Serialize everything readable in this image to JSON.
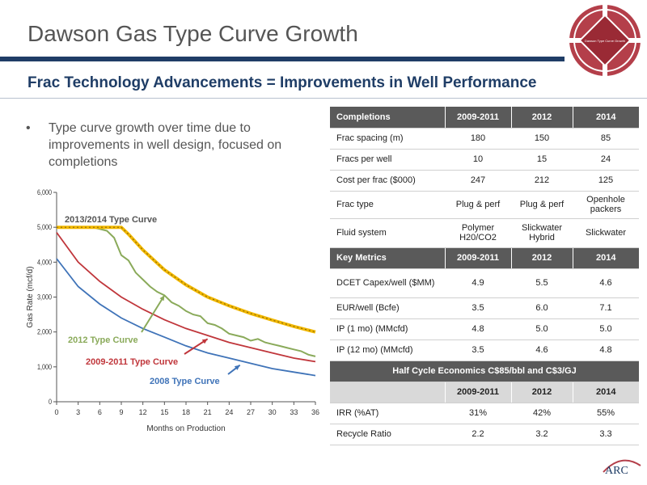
{
  "header": {
    "title": "Dawson Gas Type Curve Growth",
    "subtitle": "Frac Technology Advancements = Improvements in Well Performance"
  },
  "bullet": {
    "marker": "•",
    "text": "Type curve growth over time due to improvements in well design, focused on completions"
  },
  "logo": {
    "label": "Dawson Type Curve Growth",
    "colors": {
      "ring": "#b43f4a",
      "core": "#9a2a35"
    }
  },
  "arc_logo": {
    "text": "ARC"
  },
  "chart_data": {
    "type": "line",
    "title": "",
    "xlabel": "Months on Production",
    "ylabel": "Gas Rate (mcf/d)",
    "xlim": [
      0,
      36
    ],
    "ylim": [
      0,
      6000
    ],
    "x_ticks": [
      0,
      3,
      6,
      9,
      12,
      15,
      18,
      21,
      24,
      27,
      30,
      33,
      36
    ],
    "y_ticks": [
      0,
      1000,
      2000,
      3000,
      4000,
      5000,
      6000
    ],
    "y_tick_labels": [
      "0",
      "1,000",
      "2,000",
      "3,000",
      "4,000",
      "5,000",
      "6,000"
    ],
    "grid": false,
    "series": [
      {
        "name": "2013/2014 Type Curve",
        "color": "#f2b800",
        "style": "dashed-thick",
        "x": [
          0,
          3,
          6,
          9,
          10,
          12,
          15,
          18,
          21,
          24,
          27,
          30,
          33,
          36
        ],
        "y": [
          5000,
          5000,
          5000,
          5000,
          4800,
          4350,
          3780,
          3350,
          3000,
          2750,
          2530,
          2340,
          2160,
          2000
        ]
      },
      {
        "name": "2012 Type Curve",
        "color": "#8aaa5a",
        "style": "noisy",
        "x": [
          0,
          3,
          5,
          6,
          7,
          8,
          9,
          10,
          11,
          12,
          13,
          14,
          15,
          16,
          17,
          18,
          19,
          20,
          21,
          22,
          23,
          24,
          25,
          26,
          27,
          28,
          29,
          30,
          31,
          32,
          33,
          34,
          35,
          36
        ],
        "y": [
          5000,
          5000,
          5000,
          4950,
          4900,
          4700,
          4200,
          4050,
          3700,
          3500,
          3300,
          3150,
          3050,
          2850,
          2750,
          2600,
          2500,
          2450,
          2250,
          2200,
          2100,
          1950,
          1900,
          1850,
          1750,
          1800,
          1700,
          1650,
          1600,
          1550,
          1500,
          1450,
          1350,
          1300
        ]
      },
      {
        "name": "2009-2011 Type Curve",
        "color": "#c0363b",
        "style": "solid",
        "x": [
          0,
          3,
          6,
          9,
          12,
          15,
          18,
          21,
          24,
          27,
          30,
          33,
          36
        ],
        "y": [
          4850,
          4000,
          3450,
          3000,
          2650,
          2350,
          2100,
          1900,
          1700,
          1550,
          1400,
          1250,
          1150
        ]
      },
      {
        "name": "2008 Type Curve",
        "color": "#3f73b8",
        "style": "solid",
        "x": [
          0,
          3,
          6,
          9,
          12,
          15,
          18,
          21,
          24,
          27,
          30,
          33,
          36
        ],
        "y": [
          4100,
          3300,
          2800,
          2400,
          2100,
          1850,
          1600,
          1400,
          1250,
          1100,
          950,
          850,
          750
        ]
      }
    ],
    "annotations": [
      {
        "text": "2013/2014 Type Curve",
        "color": "#555555"
      },
      {
        "text": "2012 Type Curve",
        "color": "#8aaa5a"
      },
      {
        "text": "2009-2011 Type Curve",
        "color": "#c0363b"
      },
      {
        "text": "2008 Type Curve",
        "color": "#3f73b8"
      }
    ]
  },
  "table": {
    "completions": {
      "header": [
        "Completions",
        "2009-2011",
        "2012",
        "2014"
      ],
      "rows": [
        [
          "Frac spacing (m)",
          "180",
          "150",
          "85"
        ],
        [
          "Fracs per well",
          "10",
          "15",
          "24"
        ],
        [
          "Cost per frac ($000)",
          "247",
          "212",
          "125"
        ],
        [
          "Frac type",
          "Plug & perf",
          "Plug & perf",
          "Openhole packers"
        ],
        [
          "Fluid system",
          "Polymer H20/CO2",
          "Slickwater Hybrid",
          "Slickwater"
        ]
      ]
    },
    "metrics": {
      "header": [
        "Key Metrics",
        "2009-2011",
        "2012",
        "2014"
      ],
      "rows": [
        [
          "DCET Capex/well ($MM)",
          "4.9",
          "5.5",
          "4.6"
        ],
        [
          "EUR/well (Bcfe)",
          "3.5",
          "6.0",
          "7.1"
        ],
        [
          "IP (1 mo) (MMcfd)",
          "4.8",
          "5.0",
          "5.0"
        ],
        [
          "IP (12 mo) (MMcfd)",
          "3.5",
          "4.6",
          "4.8"
        ]
      ]
    },
    "economics": {
      "banner": "Half Cycle Economics C$85/bbl and C$3/GJ",
      "header": [
        "",
        "2009-2011",
        "2012",
        "2014"
      ],
      "rows": [
        [
          "IRR (%AT)",
          "31%",
          "42%",
          "55%"
        ],
        [
          "Recycle Ratio",
          "2.2",
          "3.2",
          "3.3"
        ]
      ]
    }
  }
}
